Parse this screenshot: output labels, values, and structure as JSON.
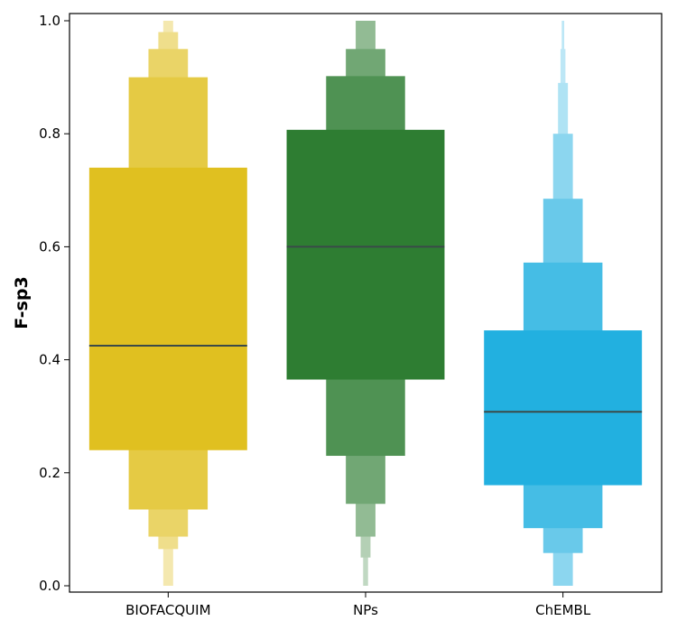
{
  "chart_data": {
    "type": "boxen",
    "xlabel": "",
    "ylabel": "F-sp3",
    "ylim": [
      0.0,
      1.0
    ],
    "yticks": [
      "0.0",
      "0.2",
      "0.4",
      "0.6",
      "0.8",
      "1.0"
    ],
    "grid": false,
    "legend": "none",
    "series": [
      {
        "name": "BIOFACQUIM",
        "color": "#e0c020",
        "median": 0.425,
        "levels": [
          {
            "lo": 0.24,
            "hi": 0.74
          },
          {
            "lo": 0.135,
            "hi": 0.9
          },
          {
            "lo": 0.087,
            "hi": 0.95
          },
          {
            "lo": 0.065,
            "hi": 0.98
          },
          {
            "lo": 0.0,
            "hi": 1.0
          }
        ]
      },
      {
        "name": "NPs",
        "color": "#2e7d32",
        "median": 0.6,
        "levels": [
          {
            "lo": 0.365,
            "hi": 0.807
          },
          {
            "lo": 0.23,
            "hi": 0.902
          },
          {
            "lo": 0.145,
            "hi": 0.95
          },
          {
            "lo": 0.087,
            "hi": 1.0
          },
          {
            "lo": 0.05,
            "hi": 1.0
          },
          {
            "lo": 0.0,
            "hi": 1.0
          }
        ]
      },
      {
        "name": "ChEMBL",
        "color": "#22b0e0",
        "median": 0.308,
        "levels": [
          {
            "lo": 0.178,
            "hi": 0.452
          },
          {
            "lo": 0.102,
            "hi": 0.572
          },
          {
            "lo": 0.058,
            "hi": 0.685
          },
          {
            "lo": 0.0,
            "hi": 0.8
          },
          {
            "lo": 0.0,
            "hi": 0.89
          },
          {
            "lo": 0.0,
            "hi": 0.95
          },
          {
            "lo": 0.0,
            "hi": 1.0
          }
        ]
      }
    ]
  }
}
